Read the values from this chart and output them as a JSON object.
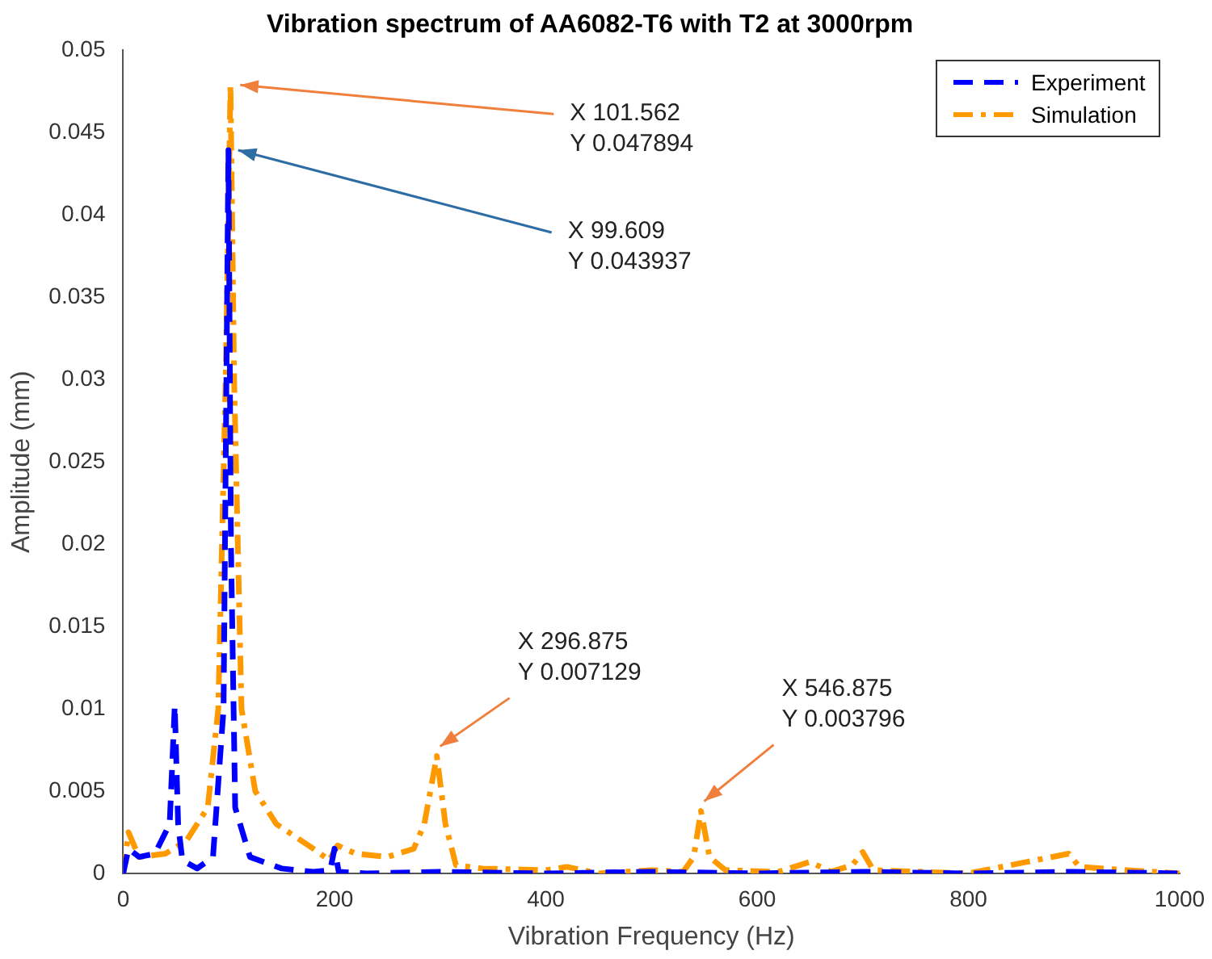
{
  "chart_data": {
    "type": "line",
    "title": "Vibration spectrum of AA6082-T6 with T2 at 3000rpm",
    "xlabel": "Vibration Frequency (Hz)",
    "ylabel": "Amplitude (mm)",
    "xlim": [
      0,
      1000
    ],
    "xticks": [
      0,
      200,
      400,
      600,
      800,
      1000
    ],
    "ylim": [
      0,
      0.05
    ],
    "yticks": [
      0,
      0.005,
      0.01,
      0.015,
      0.02,
      0.025,
      0.03,
      0.035,
      0.04,
      0.045,
      0.05
    ],
    "grid": false,
    "legend": "top right",
    "marker": "none",
    "series": [
      {
        "name": "Experiment",
        "color": "#0000ff",
        "line_style": "dashed",
        "x": [
          0,
          5,
          15,
          30,
          44,
          48.8,
          52,
          56,
          70,
          85,
          95,
          99.609,
          102,
          106,
          120,
          150,
          180,
          196,
          200,
          204,
          230,
          300,
          400,
          500,
          600,
          700,
          800,
          900,
          1000
        ],
        "values": [
          0,
          0.0015,
          0.001,
          0.0012,
          0.003,
          0.0102,
          0.003,
          0.0008,
          0.0003,
          0.001,
          0.01,
          0.043937,
          0.02,
          0.004,
          0.001,
          0.0003,
          0.0001,
          0.0002,
          0.0015,
          0.0001,
          0,
          0.0001,
          0,
          0.0001,
          0,
          0.0001,
          0,
          0.0001,
          0
        ]
      },
      {
        "name": "Simulation",
        "color": "#ff9900",
        "line_style": "dashdot",
        "x": [
          0,
          5,
          15,
          40,
          60,
          80,
          90,
          97,
          101.562,
          105,
          112,
          125,
          145,
          180,
          195,
          203,
          220,
          250,
          275,
          285,
          296.875,
          305,
          315,
          340,
          400,
          420,
          450,
          500,
          530,
          540,
          546.875,
          555,
          570,
          620,
          650,
          670,
          690,
          700,
          710,
          800,
          895,
          905,
          950,
          1000
        ],
        "values": [
          0,
          0.0025,
          0.001,
          0.0012,
          0.002,
          0.004,
          0.01,
          0.03,
          0.047894,
          0.03,
          0.01,
          0.005,
          0.003,
          0.0015,
          0.0008,
          0.0017,
          0.0012,
          0.001,
          0.0015,
          0.003,
          0.007129,
          0.003,
          0.0005,
          0.0003,
          0.0002,
          0.0004,
          0,
          0.0002,
          0.0001,
          0.001,
          0.003796,
          0.001,
          0.0002,
          0.0001,
          0.0007,
          0.0001,
          0.0005,
          0.0013,
          0.0002,
          0,
          0.0012,
          0.0004,
          0.0002,
          0
        ]
      }
    ],
    "annotations": [
      {
        "text": "X 101.562\nY 0.047894",
        "x": 101.562,
        "y": 0.047894
      },
      {
        "text": "X 99.609\nY 0.043937",
        "x": 99.609,
        "y": 0.043937
      },
      {
        "text": "X 296.875\nY 0.007129",
        "x": 296.875,
        "y": 0.007129
      },
      {
        "text": "X 546.875\nY 0.003796",
        "x": 546.875,
        "y": 0.003796
      }
    ]
  }
}
